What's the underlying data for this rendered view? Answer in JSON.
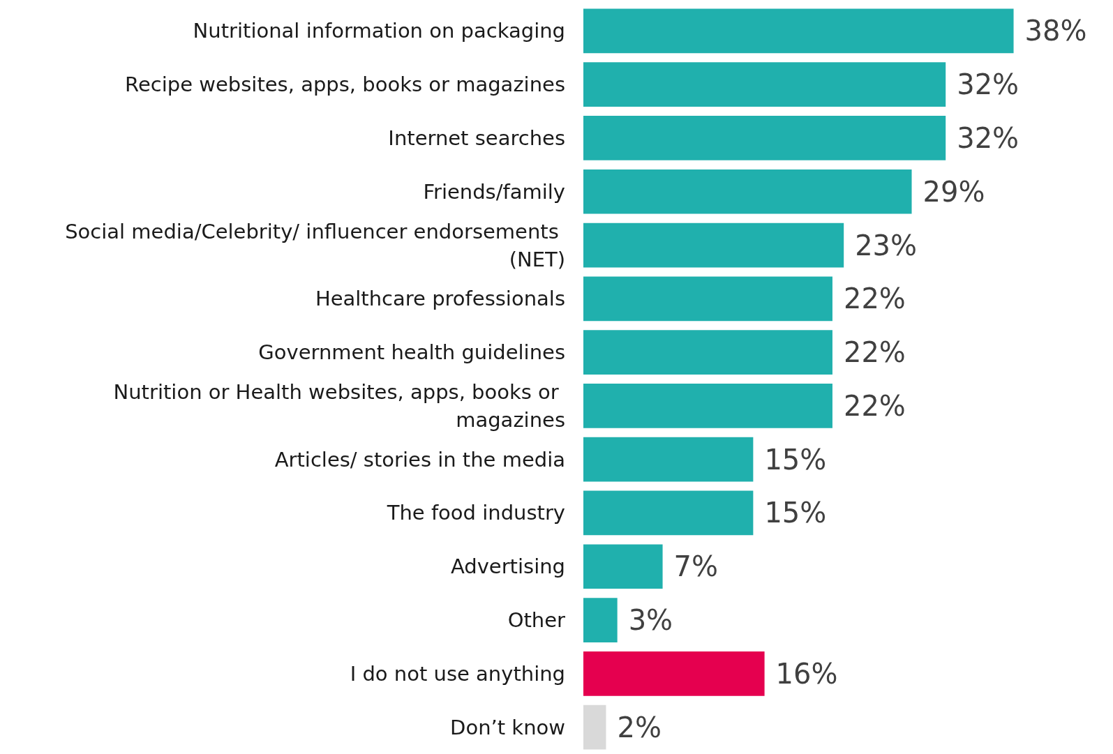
{
  "chart_data": {
    "type": "bar",
    "orientation": "horizontal",
    "categories": [
      "Nutritional information on packaging",
      "Recipe websites, apps, books or magazines",
      "Internet searches",
      "Friends/family",
      "Social media/Celebrity/ influencer endorsements (NET)",
      "Healthcare professionals",
      "Government health guidelines",
      "Nutrition or Health websites, apps, books or magazines",
      "Articles/ stories in the media",
      "The food industry",
      "Advertising",
      "Other",
      "I do not use anything",
      "Don’t know"
    ],
    "values": [
      38,
      32,
      32,
      29,
      23,
      22,
      22,
      22,
      15,
      15,
      7,
      3,
      16,
      2
    ],
    "colors": [
      "#20b0ad",
      "#20b0ad",
      "#20b0ad",
      "#20b0ad",
      "#20b0ad",
      "#20b0ad",
      "#20b0ad",
      "#20b0ad",
      "#20b0ad",
      "#20b0ad",
      "#20b0ad",
      "#20b0ad",
      "#e5004f",
      "#d9d9d9"
    ],
    "value_labels": [
      "38%",
      "32%",
      "32%",
      "29%",
      "23%",
      "22%",
      "22%",
      "22%",
      "15%",
      "15%",
      "7%",
      "3%",
      "16%",
      "2%"
    ]
  }
}
